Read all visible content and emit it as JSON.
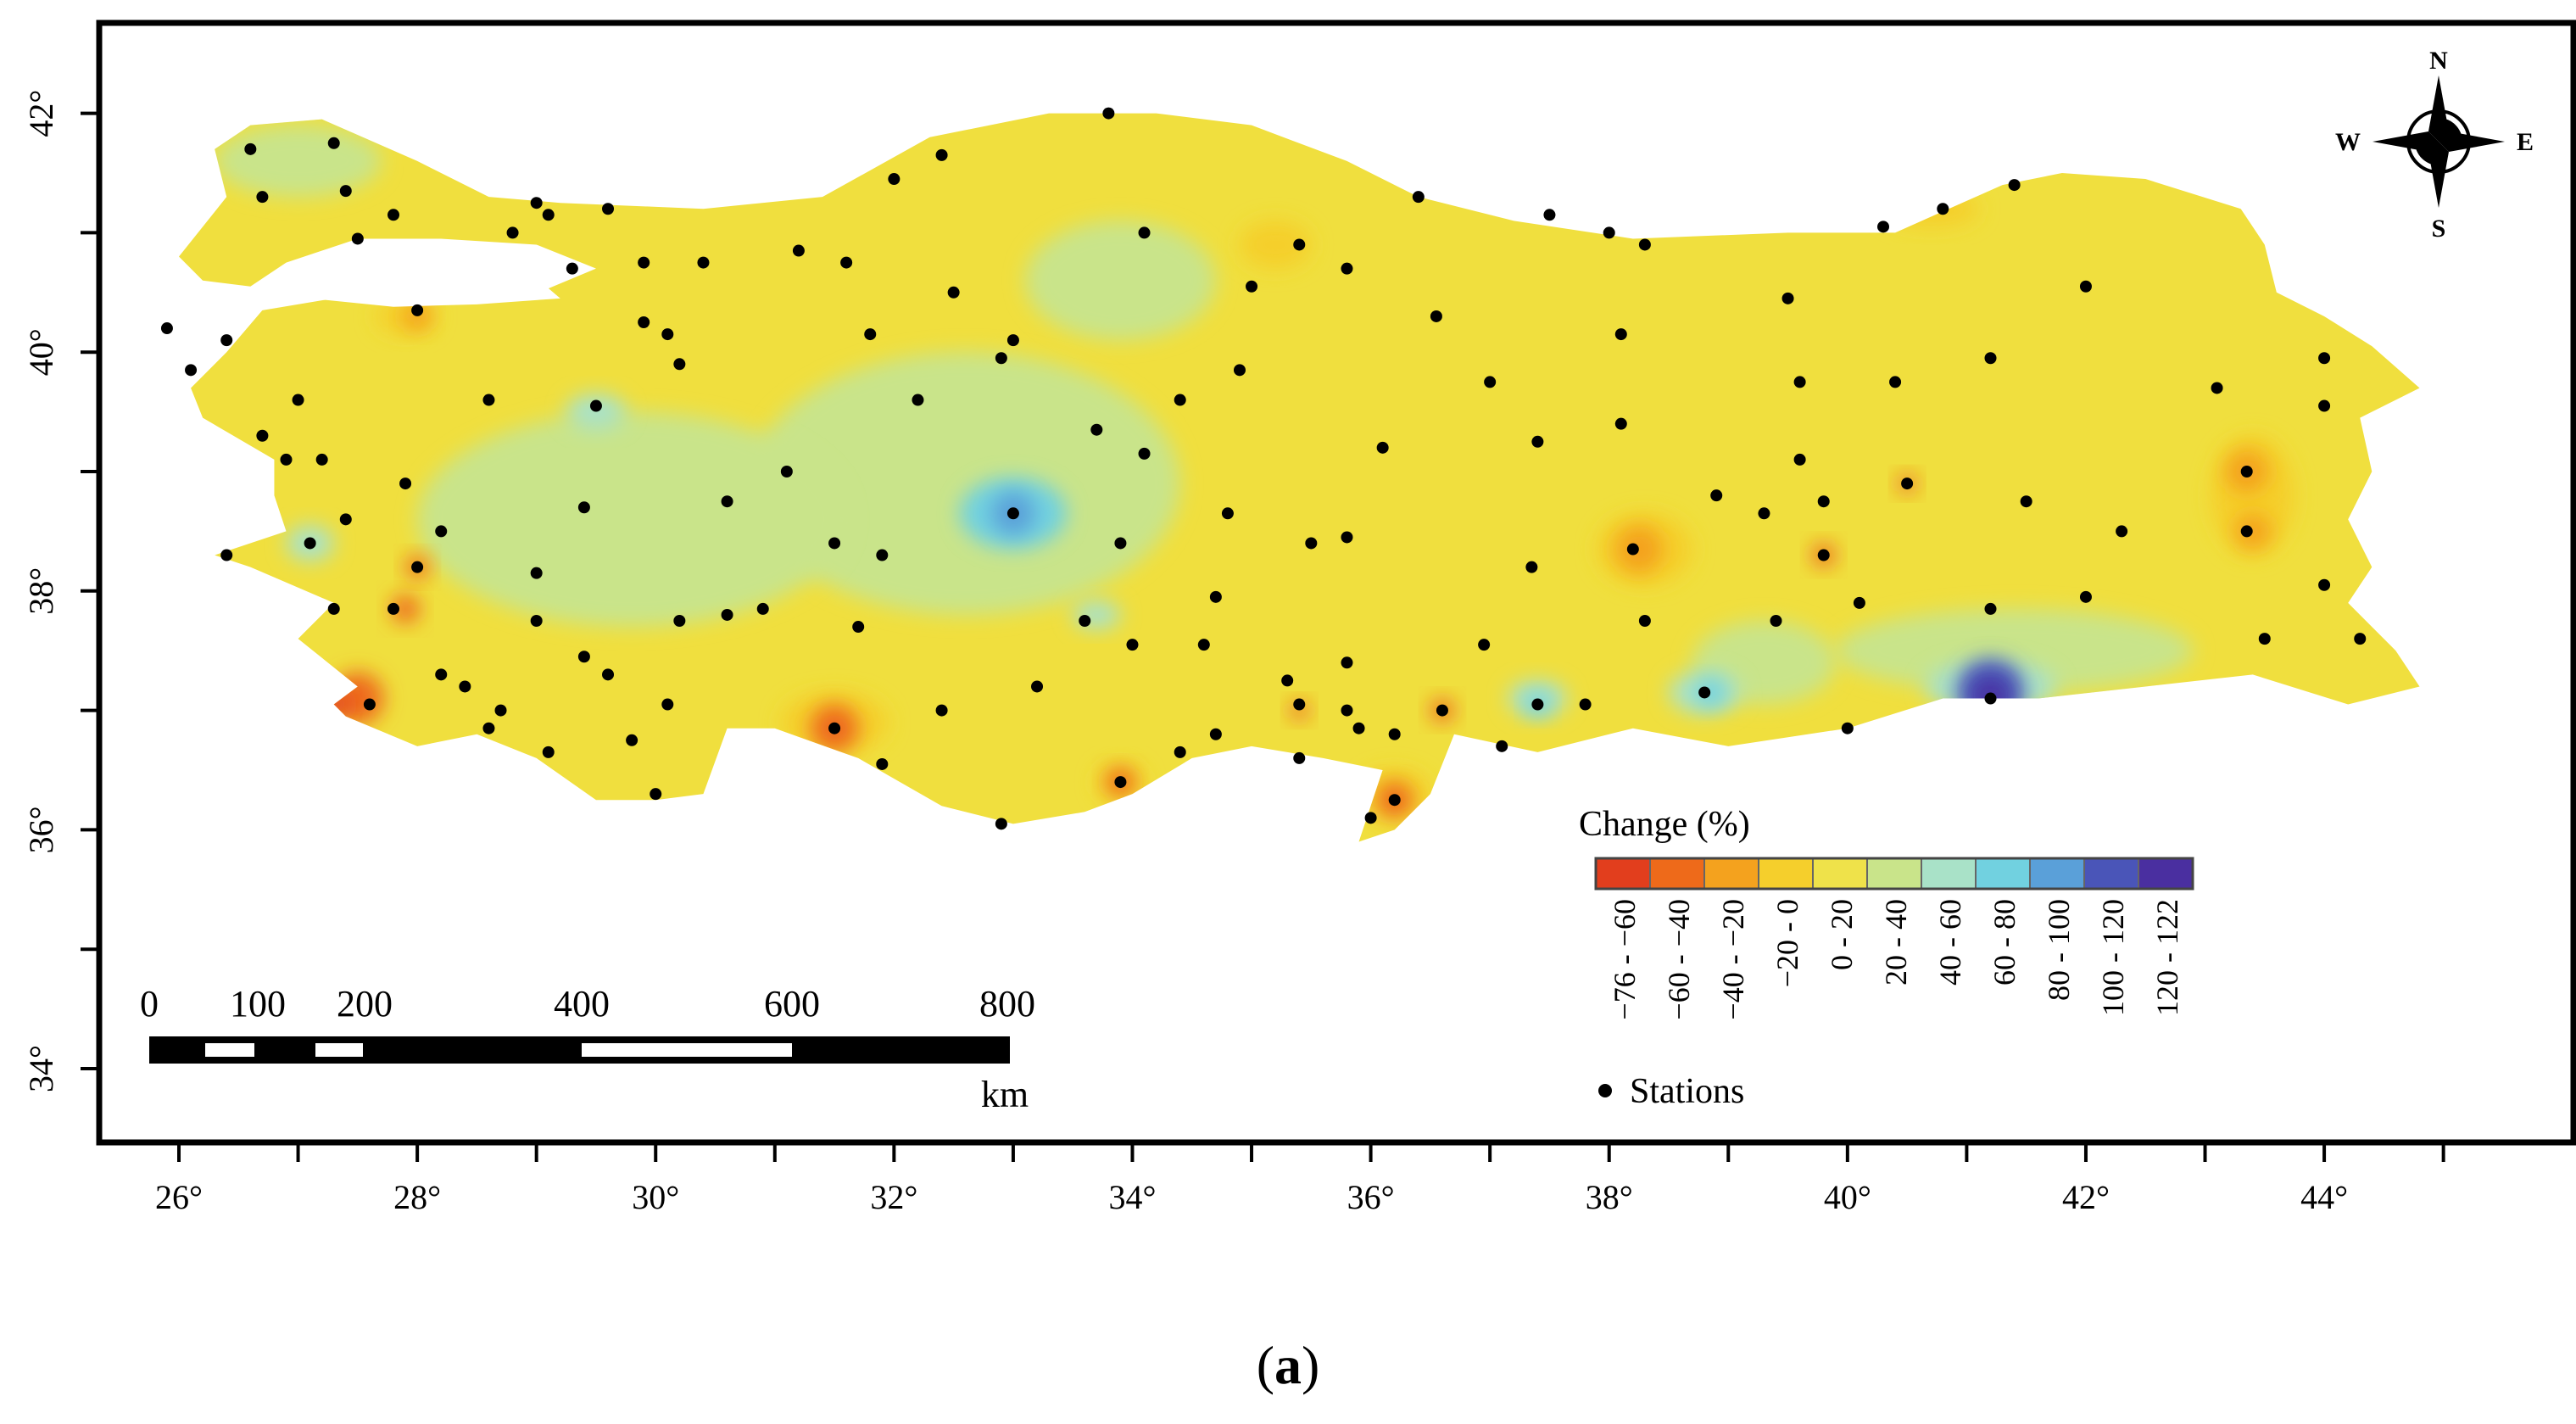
{
  "map": {
    "subject": "Turkey",
    "xaxis_ticks": [
      "26°",
      "28°",
      "30°",
      "32°",
      "34°",
      "36°",
      "38°",
      "40°",
      "42°",
      "44°"
    ],
    "yaxis_ticks": [
      "34°",
      "36°",
      "38°",
      "40°",
      "42°"
    ],
    "xlim": [
      25.3,
      46.7
    ],
    "ylim": [
      33.4,
      42.8
    ]
  },
  "compass": {
    "north": "N",
    "south": "S",
    "east": "E",
    "west": "W"
  },
  "scalebar": {
    "labels": [
      "0",
      "100",
      "200",
      "400",
      "600",
      "800"
    ],
    "unit": "km"
  },
  "legend": {
    "title": "Change (%)",
    "classes": [
      {
        "label": "−76 - −60",
        "color": "#e23e1d"
      },
      {
        "label": "−60 - −40",
        "color": "#ee6a1a"
      },
      {
        "label": "−40 - −20",
        "color": "#f4a21e"
      },
      {
        "label": "−20 - 0",
        "color": "#f5cf2c"
      },
      {
        "label": "0 - 20",
        "color": "#efe24a"
      },
      {
        "label": "20 - 40",
        "color": "#c9e48a"
      },
      {
        "label": "40 - 60",
        "color": "#a9e2c8"
      },
      {
        "label": "60 - 80",
        "color": "#71d1e0"
      },
      {
        "label": "80 - 100",
        "color": "#5aa0d9"
      },
      {
        "label": "100 - 120",
        "color": "#4a55b8"
      },
      {
        "label": "120 - 122",
        "color": "#4a2fa0"
      }
    ],
    "stations_label": "Stations"
  },
  "caption": {
    "open": "(",
    "letter": "a",
    "close": ")"
  }
}
